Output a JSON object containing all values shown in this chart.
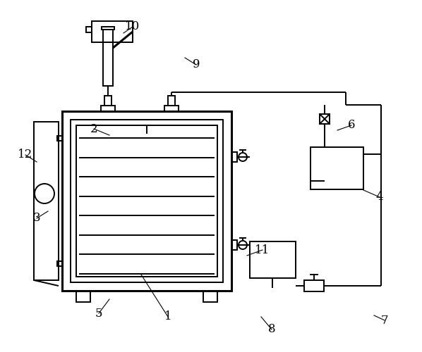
{
  "bg_color": "#ffffff",
  "line_color": "#000000",
  "lw": 1.4,
  "lw_thick": 2.2,
  "figsize": [
    5.98,
    5.0
  ],
  "dpi": 100
}
